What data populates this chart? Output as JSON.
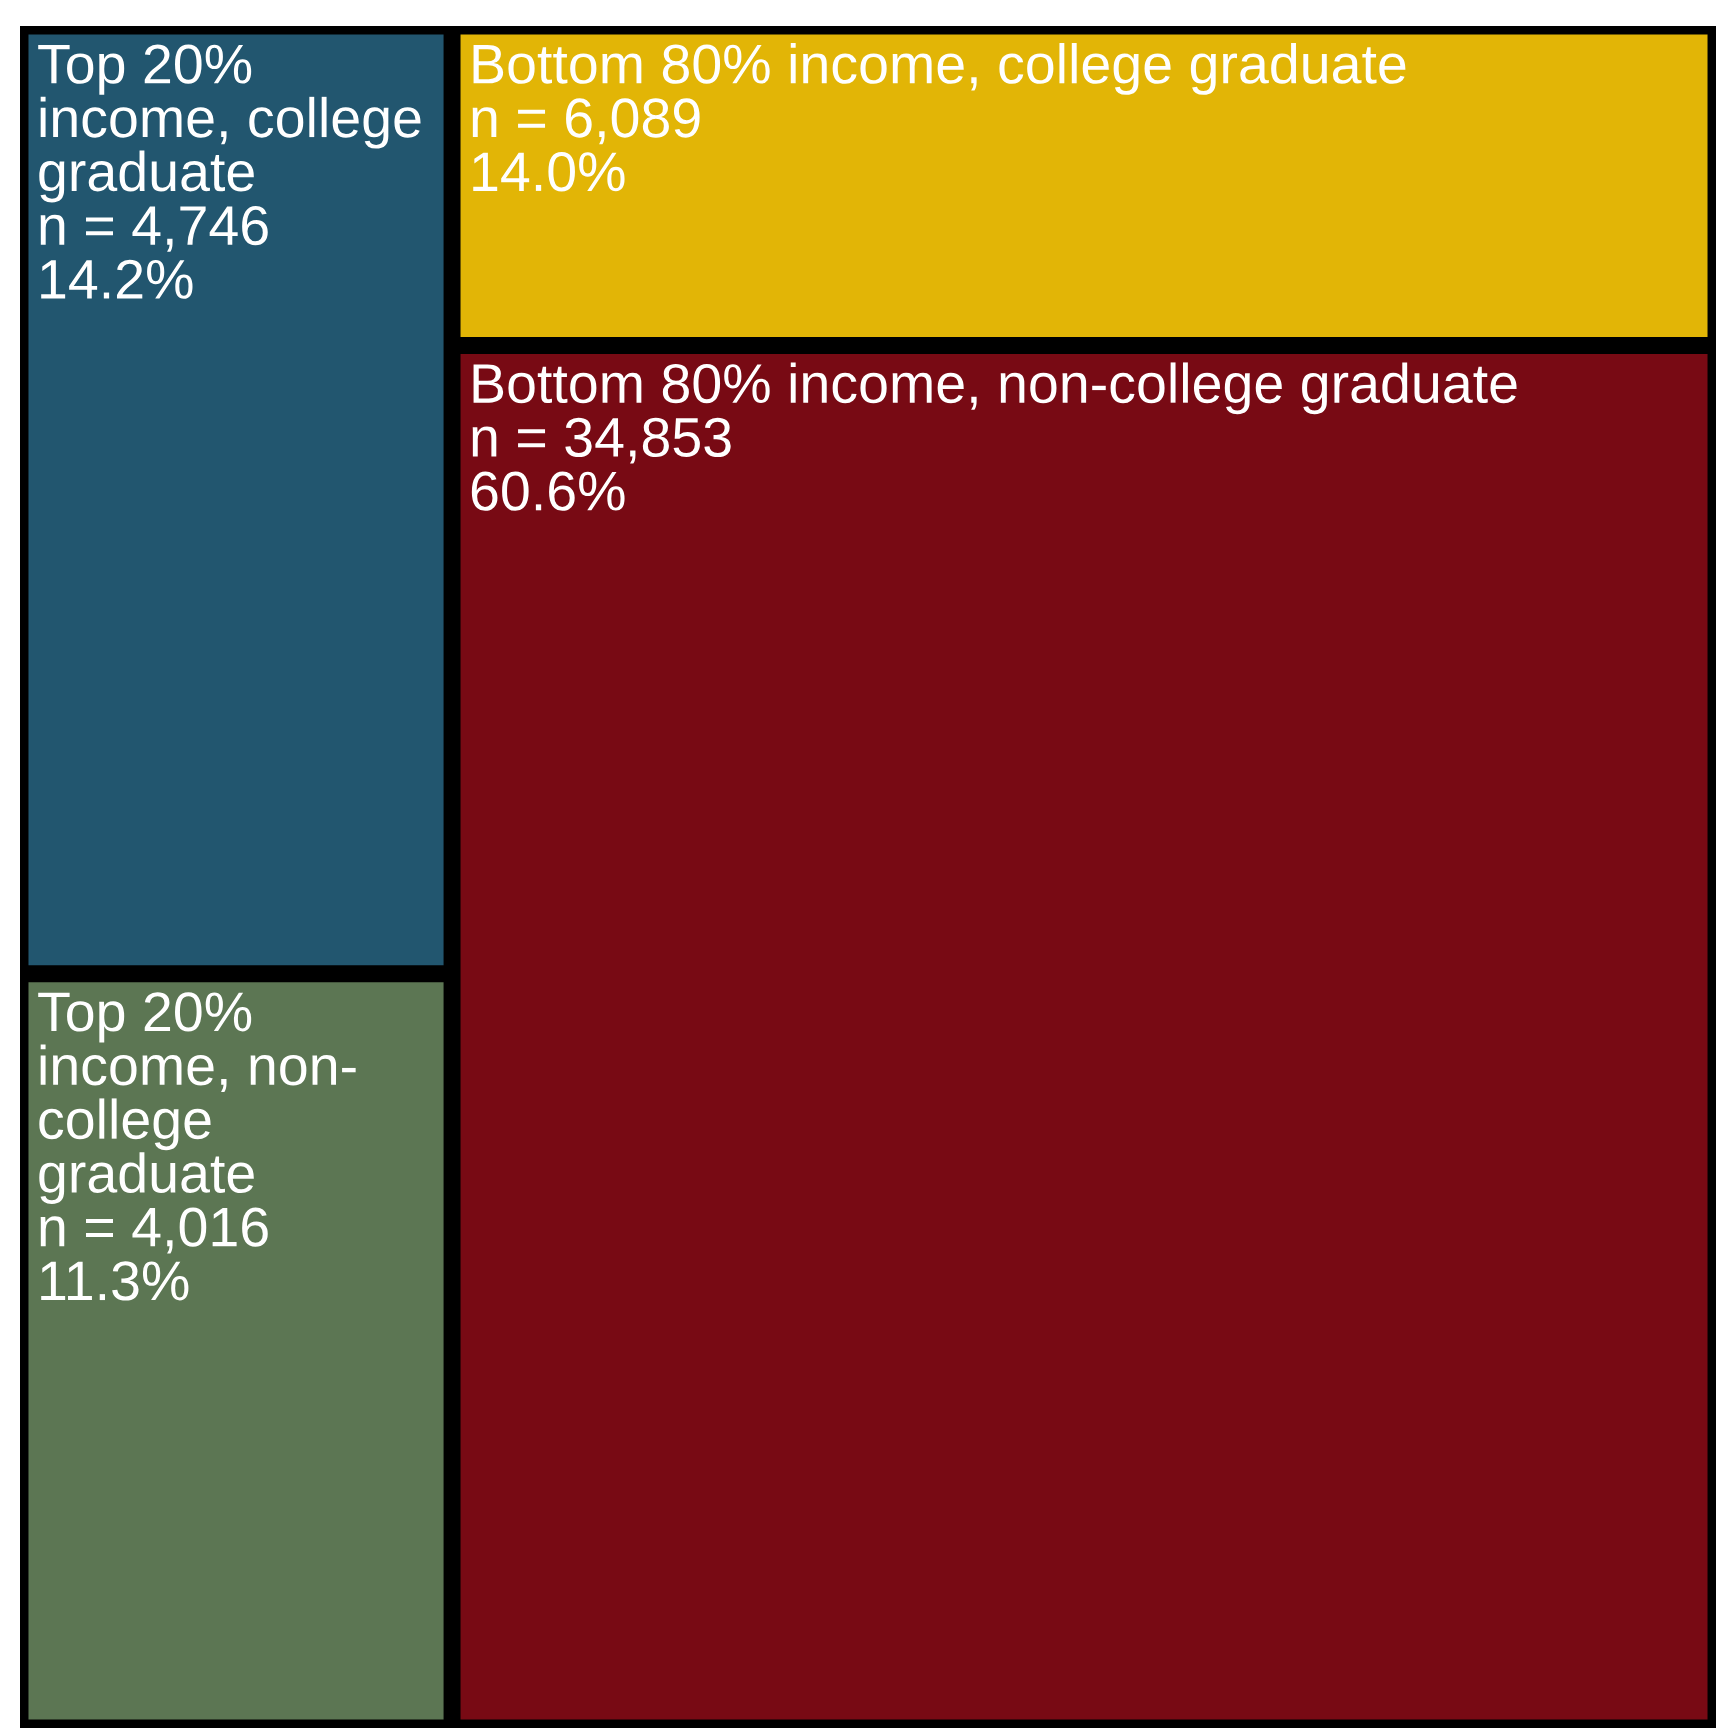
{
  "chart_data": {
    "type": "other",
    "categories": [
      "Top 20% income, college graduate",
      "Top 20% income, non-college graduate",
      "Bottom 80% income, college graduate",
      "Bottom 80% income, non-college graduate"
    ],
    "values": [
      14.2,
      11.3,
      14.0,
      60.6
    ],
    "value_labels": [
      "n = 4,746\n14.2%",
      "n = 4,016\n11.3%",
      "n = 6,089\n14.0%",
      "n = 34,853\n60.6%"
    ],
    "colors": [
      "#22566f",
      "#5c7653",
      "#e2b506",
      "#780a14"
    ]
  }
}
